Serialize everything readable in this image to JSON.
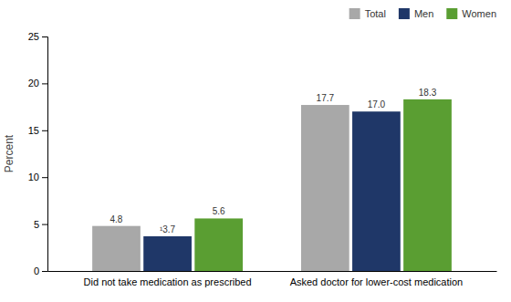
{
  "chart_data": {
    "type": "bar",
    "categories": [
      "Did not take medication as prescribed",
      "Asked doctor for lower-cost medication"
    ],
    "series": [
      {
        "name": "Total",
        "color": "#a8a8a8",
        "values": [
          4.8,
          17.7
        ],
        "value_labels": [
          "4.8",
          "17.7"
        ]
      },
      {
        "name": "Men",
        "color": "#1f3768",
        "values": [
          3.7,
          17.0
        ],
        "value_labels": [
          "¹3.7",
          "17.0"
        ]
      },
      {
        "name": "Women",
        "color": "#5a9e32",
        "values": [
          5.6,
          18.3
        ],
        "value_labels": [
          "5.6",
          "18.3"
        ]
      }
    ],
    "ylabel": "Percent",
    "ylim": [
      0,
      25
    ],
    "yticks": [
      0,
      5,
      10,
      15,
      20,
      25
    ],
    "data_labels": true,
    "legend": "upper right",
    "grid": false
  }
}
